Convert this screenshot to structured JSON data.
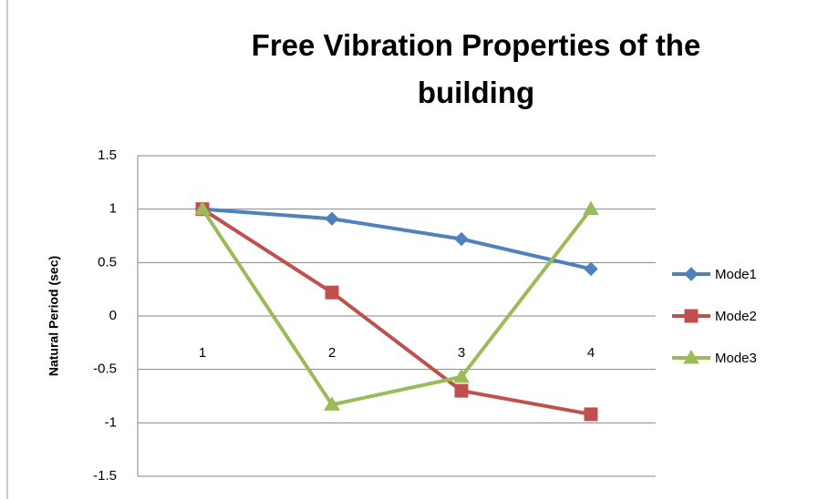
{
  "chart_data": {
    "type": "line",
    "title": "Free Vibration Properties of the building",
    "y_label": "Natural Period (sec)",
    "categories": [
      "1",
      "2",
      "3",
      "4"
    ],
    "series": [
      {
        "name": "Mode1",
        "color": "#4f81bd",
        "marker": "diamond",
        "values": [
          1,
          0.91,
          0.72,
          0.44
        ]
      },
      {
        "name": "Mode2",
        "color": "#c0504d",
        "marker": "square",
        "values": [
          1,
          0.22,
          -0.7,
          -0.92
        ]
      },
      {
        "name": "Mode3",
        "color": "#9bbb59",
        "marker": "triangle",
        "values": [
          1,
          -0.83,
          -0.57,
          1
        ]
      }
    ],
    "ylim": [
      -1.5,
      1.5
    ],
    "yticks": [
      -1.5,
      -1,
      -0.5,
      0,
      0.5,
      1,
      1.5
    ],
    "grid": true,
    "legend": "right"
  }
}
